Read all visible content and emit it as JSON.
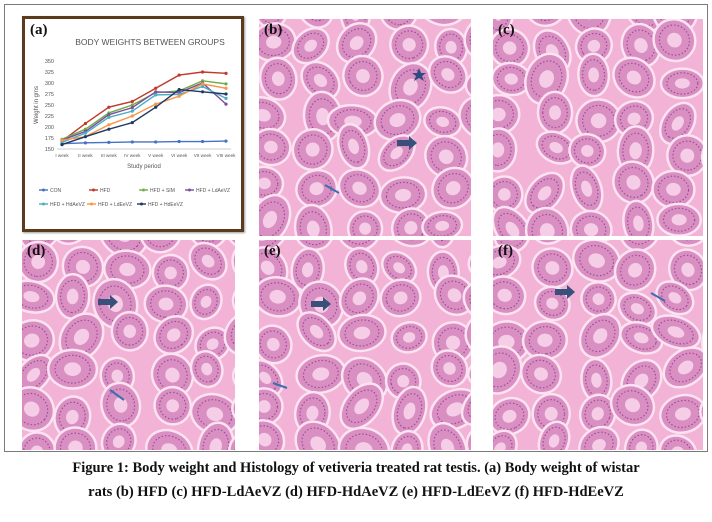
{
  "panels": {
    "a": {
      "label": "(a)"
    },
    "b": {
      "label": "(b)"
    },
    "c": {
      "label": "(c)"
    },
    "d": {
      "label": "(d)"
    },
    "e": {
      "label": "(e)"
    },
    "f": {
      "label": "(f)"
    }
  },
  "caption": {
    "line1": "Figure 1: Body weight and Histology of vetiveria treated rat testis. (a) Body weight of wistar",
    "line2": "rats (b) HFD (c) HFD-LdAeVZ (d) HFD-HdAeVZ (e) HFD-LdEeVZ (f) HFD-HdEeVZ"
  },
  "chart_data": {
    "type": "line",
    "title": "BODY WEIGHTS BETWEEN GROUPS",
    "xlabel": "Study period",
    "ylabel": "Weight in gms",
    "categories": [
      "I week",
      "II week",
      "III week",
      "IV week",
      "V week",
      "VI week",
      "VII week",
      "VIII week"
    ],
    "yticks": [
      150,
      175,
      200,
      225,
      250,
      275,
      300,
      325,
      350
    ],
    "ylim": [
      150,
      350
    ],
    "grid": false,
    "legend_position": "bottom",
    "series": [
      {
        "name": "CON",
        "color": "#4472c4",
        "values": [
          162,
          164,
          165,
          166,
          166,
          167,
          167,
          168
        ]
      },
      {
        "name": "HFD",
        "color": "#c0392b",
        "values": [
          168,
          208,
          245,
          258,
          288,
          318,
          325,
          322
        ]
      },
      {
        "name": "HFD + SIM",
        "color": "#70ad47",
        "values": [
          172,
          195,
          232,
          250,
          278,
          282,
          305,
          298
        ]
      },
      {
        "name": "HFD + LdAeVZ",
        "color": "#7b4f9d",
        "values": [
          170,
          190,
          228,
          244,
          280,
          278,
          300,
          252
        ]
      },
      {
        "name": "HFD + HdAeVZ",
        "color": "#4bacc6",
        "values": [
          165,
          186,
          222,
          236,
          273,
          274,
          292,
          265
        ]
      },
      {
        "name": "HFD + LdEeVZ",
        "color": "#f79646",
        "values": [
          170,
          178,
          205,
          225,
          252,
          270,
          298,
          288
        ]
      },
      {
        "name": "HFD + HdEeVZ",
        "color": "#1f3864",
        "values": [
          160,
          178,
          195,
          210,
          245,
          285,
          280,
          275
        ]
      }
    ]
  }
}
